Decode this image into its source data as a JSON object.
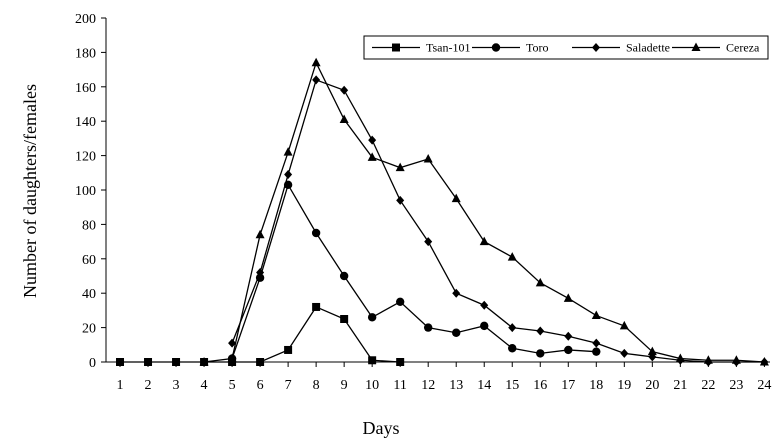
{
  "chart_data": {
    "type": "line",
    "title": "",
    "xlabel": "Days",
    "ylabel": "Number of daughters/females",
    "x": [
      1,
      2,
      3,
      4,
      5,
      6,
      7,
      8,
      9,
      10,
      11,
      12,
      13,
      14,
      15,
      16,
      17,
      18,
      19,
      20,
      21,
      22,
      23,
      24
    ],
    "x_ticks": [
      "1",
      "2",
      "3",
      "4",
      "5",
      "6",
      "7",
      "8",
      "9",
      "10",
      "11",
      "12",
      "13",
      "14",
      "15",
      "16",
      "17",
      "18",
      "19",
      "20",
      "21",
      "22",
      "23",
      "24"
    ],
    "y_ticks": [
      "0",
      "20",
      "40",
      "60",
      "80",
      "100",
      "120",
      "140",
      "160",
      "180",
      "200"
    ],
    "ylim": [
      0,
      200
    ],
    "xlim": [
      0.5,
      24.2
    ],
    "grid": false,
    "legend_position": "top-right",
    "series": [
      {
        "name": "Tsan-101",
        "marker": "square",
        "points": [
          [
            1,
            0
          ],
          [
            2,
            0
          ],
          [
            3,
            0
          ],
          [
            4,
            0
          ],
          [
            5,
            0
          ],
          [
            6,
            0
          ],
          [
            7,
            7
          ],
          [
            8,
            32
          ],
          [
            9,
            25
          ],
          [
            10,
            1
          ],
          [
            11,
            0
          ]
        ]
      },
      {
        "name": "Toro",
        "marker": "circle",
        "points": [
          [
            5,
            2
          ],
          [
            6,
            49
          ],
          [
            7,
            103
          ],
          [
            8,
            75
          ],
          [
            9,
            50
          ],
          [
            10,
            26
          ],
          [
            11,
            35
          ],
          [
            12,
            20
          ],
          [
            13,
            17
          ],
          [
            14,
            21
          ],
          [
            15,
            8
          ],
          [
            16,
            5
          ],
          [
            17,
            7
          ],
          [
            18,
            6
          ]
        ]
      },
      {
        "name": "Saladette",
        "marker": "diamond",
        "points": [
          [
            5,
            11
          ],
          [
            6,
            52
          ],
          [
            7,
            109
          ],
          [
            8,
            164
          ],
          [
            9,
            158
          ],
          [
            10,
            129
          ],
          [
            11,
            94
          ],
          [
            12,
            70
          ],
          [
            13,
            40
          ],
          [
            14,
            33
          ],
          [
            15,
            20
          ],
          [
            16,
            18
          ],
          [
            17,
            15
          ],
          [
            18,
            11
          ],
          [
            19,
            5
          ],
          [
            20,
            3
          ],
          [
            21,
            1
          ],
          [
            22,
            0
          ],
          [
            23,
            0
          ],
          [
            24,
            0
          ]
        ]
      },
      {
        "name": "Cereza",
        "marker": "triangle",
        "points": [
          [
            4,
            0
          ],
          [
            5,
            2
          ],
          [
            6,
            74
          ],
          [
            7,
            122
          ],
          [
            8,
            174
          ],
          [
            9,
            141
          ],
          [
            10,
            119
          ],
          [
            11,
            113
          ],
          [
            12,
            118
          ],
          [
            13,
            95
          ],
          [
            14,
            70
          ],
          [
            15,
            61
          ],
          [
            16,
            46
          ],
          [
            17,
            37
          ],
          [
            18,
            27
          ],
          [
            19,
            21
          ],
          [
            20,
            6
          ],
          [
            21,
            2
          ],
          [
            22,
            1
          ],
          [
            23,
            1
          ],
          [
            24,
            0
          ]
        ]
      }
    ]
  }
}
